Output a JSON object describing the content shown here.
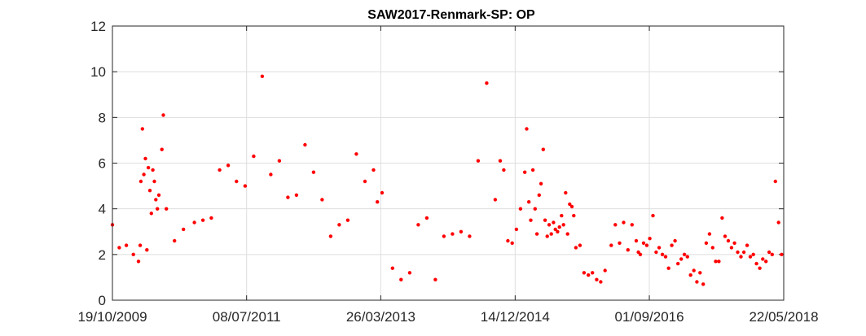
{
  "chart_data": {
    "type": "scatter",
    "title": "SAW2017-Renmark-SP: OP",
    "xlabel": "",
    "ylabel": "",
    "x_type": "date",
    "xlim": [
      "2009-10-19",
      "2018-05-22"
    ],
    "ylim": [
      0,
      12
    ],
    "x_ticks": [
      "2009-10-19",
      "2011-07-08",
      "2013-03-26",
      "2014-12-14",
      "2016-09-01",
      "2018-05-22"
    ],
    "x_tick_labels": [
      "19/10/2009",
      "08/07/2011",
      "26/03/2013",
      "14/12/2014",
      "01/09/2016",
      "22/05/2018"
    ],
    "y_ticks": [
      0,
      2,
      4,
      6,
      8,
      10,
      12
    ],
    "y_tick_labels": [
      "0",
      "2",
      "4",
      "6",
      "8",
      "10",
      "12"
    ],
    "grid": true,
    "marker_color": "#ff0000",
    "points": [
      [
        "2009-10-19",
        3.3
      ],
      [
        "2009-11-20",
        2.3
      ],
      [
        "2009-12-23",
        2.4
      ],
      [
        "2010-01-25",
        2.0
      ],
      [
        "2010-02-18",
        1.7
      ],
      [
        "2010-02-26",
        2.4
      ],
      [
        "2010-03-01",
        5.2
      ],
      [
        "2010-03-08",
        7.5
      ],
      [
        "2010-03-15",
        5.5
      ],
      [
        "2010-03-22",
        6.2
      ],
      [
        "2010-03-29",
        2.2
      ],
      [
        "2010-04-05",
        5.8
      ],
      [
        "2010-04-12",
        4.8
      ],
      [
        "2010-04-19",
        3.8
      ],
      [
        "2010-04-26",
        5.7
      ],
      [
        "2010-05-03",
        5.2
      ],
      [
        "2010-05-10",
        4.4
      ],
      [
        "2010-05-17",
        4.0
      ],
      [
        "2010-05-24",
        4.6
      ],
      [
        "2010-06-07",
        6.6
      ],
      [
        "2010-06-14",
        8.1
      ],
      [
        "2010-06-28",
        4.0
      ],
      [
        "2010-08-05",
        2.6
      ],
      [
        "2010-09-16",
        3.1
      ],
      [
        "2010-11-06",
        3.4
      ],
      [
        "2010-12-16",
        3.5
      ],
      [
        "2011-01-24",
        3.6
      ],
      [
        "2011-03-04",
        5.7
      ],
      [
        "2011-04-13",
        5.9
      ],
      [
        "2011-05-22",
        5.2
      ],
      [
        "2011-07-01",
        5.0
      ],
      [
        "2011-08-10",
        6.3
      ],
      [
        "2011-09-19",
        9.8
      ],
      [
        "2011-10-29",
        5.5
      ],
      [
        "2011-12-08",
        6.1
      ],
      [
        "2012-01-17",
        4.5
      ],
      [
        "2012-02-26",
        4.6
      ],
      [
        "2012-04-06",
        6.8
      ],
      [
        "2012-05-16",
        5.6
      ],
      [
        "2012-06-25",
        4.4
      ],
      [
        "2012-08-04",
        2.8
      ],
      [
        "2012-09-13",
        3.3
      ],
      [
        "2012-10-23",
        3.5
      ],
      [
        "2012-12-02",
        6.4
      ],
      [
        "2013-01-11",
        5.2
      ],
      [
        "2013-02-20",
        5.7
      ],
      [
        "2013-03-10",
        4.3
      ],
      [
        "2013-04-01",
        4.7
      ],
      [
        "2013-05-20",
        1.4
      ],
      [
        "2013-06-29",
        0.9
      ],
      [
        "2013-08-08",
        1.2
      ],
      [
        "2013-09-17",
        3.3
      ],
      [
        "2013-10-27",
        3.6
      ],
      [
        "2013-12-06",
        0.9
      ],
      [
        "2014-01-15",
        2.8
      ],
      [
        "2014-02-24",
        2.9
      ],
      [
        "2014-04-05",
        3.0
      ],
      [
        "2014-05-15",
        2.8
      ],
      [
        "2014-06-24",
        6.1
      ],
      [
        "2014-08-03",
        9.5
      ],
      [
        "2014-09-12",
        4.4
      ],
      [
        "2014-10-05",
        6.1
      ],
      [
        "2014-10-22",
        5.7
      ],
      [
        "2014-11-10",
        2.6
      ],
      [
        "2014-11-30",
        2.5
      ],
      [
        "2014-12-20",
        3.1
      ],
      [
        "2015-01-08",
        4.0
      ],
      [
        "2015-01-28",
        5.6
      ],
      [
        "2015-02-06",
        7.5
      ],
      [
        "2015-02-16",
        4.3
      ],
      [
        "2015-02-25",
        3.5
      ],
      [
        "2015-03-07",
        5.7
      ],
      [
        "2015-03-17",
        4.0
      ],
      [
        "2015-03-26",
        2.9
      ],
      [
        "2015-04-05",
        4.6
      ],
      [
        "2015-04-14",
        5.1
      ],
      [
        "2015-04-24",
        6.6
      ],
      [
        "2015-05-03",
        3.5
      ],
      [
        "2015-05-13",
        2.8
      ],
      [
        "2015-05-22",
        3.3
      ],
      [
        "2015-06-01",
        2.9
      ],
      [
        "2015-06-11",
        3.4
      ],
      [
        "2015-06-20",
        3.1
      ],
      [
        "2015-06-30",
        3.0
      ],
      [
        "2015-07-09",
        3.2
      ],
      [
        "2015-07-19",
        3.7
      ],
      [
        "2015-07-28",
        3.3
      ],
      [
        "2015-08-07",
        4.7
      ],
      [
        "2015-08-16",
        2.9
      ],
      [
        "2015-08-26",
        4.2
      ],
      [
        "2015-09-05",
        4.1
      ],
      [
        "2015-09-14",
        3.7
      ],
      [
        "2015-09-24",
        2.3
      ],
      [
        "2015-10-13",
        2.4
      ],
      [
        "2015-11-01",
        1.2
      ],
      [
        "2015-11-21",
        1.1
      ],
      [
        "2015-12-10",
        1.2
      ],
      [
        "2015-12-30",
        0.9
      ],
      [
        "2016-01-18",
        0.8
      ],
      [
        "2016-02-07",
        1.3
      ],
      [
        "2016-03-07",
        2.4
      ],
      [
        "2016-03-26",
        3.3
      ],
      [
        "2016-04-15",
        2.5
      ],
      [
        "2016-05-04",
        3.4
      ],
      [
        "2016-05-24",
        2.2
      ],
      [
        "2016-06-12",
        3.3
      ],
      [
        "2016-07-02",
        2.6
      ],
      [
        "2016-07-12",
        2.1
      ],
      [
        "2016-07-21",
        2.0
      ],
      [
        "2016-08-05",
        2.5
      ],
      [
        "2016-08-20",
        2.4
      ],
      [
        "2016-09-03",
        2.7
      ],
      [
        "2016-09-18",
        3.7
      ],
      [
        "2016-10-03",
        2.1
      ],
      [
        "2016-10-17",
        2.3
      ],
      [
        "2016-11-01",
        2.0
      ],
      [
        "2016-11-16",
        1.9
      ],
      [
        "2016-11-30",
        1.4
      ],
      [
        "2016-12-15",
        2.4
      ],
      [
        "2016-12-30",
        2.6
      ],
      [
        "2017-01-13",
        1.6
      ],
      [
        "2017-01-28",
        1.8
      ],
      [
        "2017-02-12",
        2.0
      ],
      [
        "2017-02-26",
        1.9
      ],
      [
        "2017-03-13",
        1.1
      ],
      [
        "2017-03-28",
        1.3
      ],
      [
        "2017-04-11",
        0.8
      ],
      [
        "2017-04-26",
        1.2
      ],
      [
        "2017-05-11",
        0.7
      ],
      [
        "2017-05-25",
        2.5
      ],
      [
        "2017-06-09",
        2.9
      ],
      [
        "2017-06-24",
        2.3
      ],
      [
        "2017-07-08",
        1.7
      ],
      [
        "2017-07-23",
        1.7
      ],
      [
        "2017-08-07",
        3.6
      ],
      [
        "2017-08-21",
        2.8
      ],
      [
        "2017-09-05",
        2.6
      ],
      [
        "2017-09-20",
        2.3
      ],
      [
        "2017-10-04",
        2.5
      ],
      [
        "2017-10-19",
        2.1
      ],
      [
        "2017-11-03",
        1.9
      ],
      [
        "2017-11-17",
        2.1
      ],
      [
        "2017-12-02",
        2.4
      ],
      [
        "2017-12-17",
        1.9
      ],
      [
        "2017-12-31",
        2.0
      ],
      [
        "2018-01-15",
        1.6
      ],
      [
        "2018-01-30",
        1.4
      ],
      [
        "2018-02-13",
        1.8
      ],
      [
        "2018-02-28",
        1.7
      ],
      [
        "2018-03-15",
        2.1
      ],
      [
        "2018-03-29",
        2.0
      ],
      [
        "2018-04-13",
        5.2
      ],
      [
        "2018-04-28",
        3.4
      ],
      [
        "2018-05-12",
        2.0
      ]
    ]
  }
}
